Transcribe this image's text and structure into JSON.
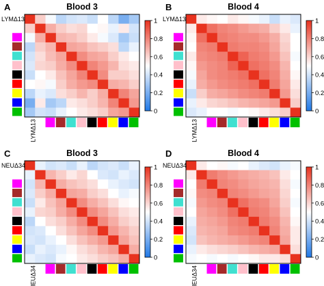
{
  "figure": {
    "colors": {
      "low": "#1f78e6",
      "mid": "#ffffff",
      "high": "#e8321e",
      "frame": "#000000"
    },
    "group_colors": [
      "#ff00ff",
      "#a52a2a",
      "#40e0d0",
      "#ffc0cb",
      "#000000",
      "#ff0000",
      "#ffff00",
      "#0000ff",
      "#00c000"
    ]
  },
  "chart_data": [
    {
      "panel": "A",
      "type": "heatmap",
      "title": "Blood 3",
      "corner_label": "LYMΔ13",
      "colorbar_ticks": [
        "0",
        "0.2",
        "0.4",
        "0.6",
        "0.8",
        "1"
      ],
      "zlim": [
        0,
        1
      ],
      "values": [
        [
          1.0,
          0.62,
          0.48,
          0.35,
          0.4,
          0.42,
          0.38,
          0.5,
          0.35,
          0.2,
          0.3
        ],
        [
          0.62,
          1.0,
          0.7,
          0.62,
          0.58,
          0.6,
          0.5,
          0.52,
          0.45,
          0.55,
          0.4
        ],
        [
          0.48,
          0.7,
          1.0,
          0.68,
          0.66,
          0.62,
          0.55,
          0.48,
          0.42,
          0.3,
          0.38
        ],
        [
          0.35,
          0.62,
          0.68,
          1.0,
          0.72,
          0.7,
          0.65,
          0.62,
          0.58,
          0.35,
          0.45
        ],
        [
          0.4,
          0.58,
          0.66,
          0.72,
          1.0,
          0.78,
          0.72,
          0.7,
          0.62,
          0.55,
          0.5
        ],
        [
          0.42,
          0.6,
          0.62,
          0.7,
          0.78,
          1.0,
          0.8,
          0.75,
          0.68,
          0.58,
          0.55
        ],
        [
          0.38,
          0.5,
          0.55,
          0.65,
          0.72,
          0.8,
          1.0,
          0.78,
          0.62,
          0.62,
          0.58
        ],
        [
          0.5,
          0.52,
          0.48,
          0.62,
          0.7,
          0.75,
          0.78,
          1.0,
          0.7,
          0.68,
          0.62
        ],
        [
          0.35,
          0.45,
          0.42,
          0.58,
          0.62,
          0.68,
          0.62,
          0.7,
          1.0,
          0.8,
          0.72
        ],
        [
          0.2,
          0.55,
          0.3,
          0.35,
          0.55,
          0.58,
          0.62,
          0.68,
          0.8,
          1.0,
          0.75
        ],
        [
          0.3,
          0.4,
          0.38,
          0.45,
          0.5,
          0.55,
          0.58,
          0.62,
          0.72,
          0.75,
          1.0
        ]
      ]
    },
    {
      "panel": "B",
      "type": "heatmap",
      "title": "Blood 4",
      "corner_label": "LYMΔ13",
      "colorbar_ticks": [
        "0",
        "0.2",
        "0.4",
        "0.6",
        "0.8",
        "1"
      ],
      "zlim": [
        0,
        1
      ],
      "values": [
        [
          1.0,
          0.55,
          0.52,
          0.5,
          0.55,
          0.52,
          0.48,
          0.45,
          0.38,
          0.45,
          0.42
        ],
        [
          0.55,
          1.0,
          0.85,
          0.8,
          0.78,
          0.75,
          0.72,
          0.7,
          0.62,
          0.55,
          0.45
        ],
        [
          0.52,
          0.85,
          1.0,
          0.82,
          0.8,
          0.78,
          0.78,
          0.75,
          0.7,
          0.6,
          0.5
        ],
        [
          0.5,
          0.8,
          0.82,
          1.0,
          0.82,
          0.8,
          0.8,
          0.78,
          0.72,
          0.62,
          0.5
        ],
        [
          0.55,
          0.78,
          0.8,
          0.82,
          1.0,
          0.88,
          0.82,
          0.8,
          0.75,
          0.65,
          0.48
        ],
        [
          0.52,
          0.75,
          0.78,
          0.8,
          0.88,
          1.0,
          0.85,
          0.82,
          0.78,
          0.68,
          0.5
        ],
        [
          0.48,
          0.72,
          0.78,
          0.8,
          0.82,
          0.85,
          1.0,
          0.85,
          0.8,
          0.7,
          0.52
        ],
        [
          0.45,
          0.7,
          0.75,
          0.78,
          0.8,
          0.82,
          0.85,
          1.0,
          0.82,
          0.72,
          0.55
        ],
        [
          0.38,
          0.62,
          0.7,
          0.72,
          0.75,
          0.78,
          0.8,
          0.82,
          1.0,
          0.75,
          0.58
        ],
        [
          0.45,
          0.55,
          0.6,
          0.62,
          0.65,
          0.68,
          0.7,
          0.72,
          0.75,
          1.0,
          0.62
        ],
        [
          0.42,
          0.45,
          0.5,
          0.5,
          0.48,
          0.5,
          0.52,
          0.55,
          0.58,
          0.62,
          1.0
        ]
      ]
    },
    {
      "panel": "C",
      "type": "heatmap",
      "title": "Blood 3",
      "corner_label": "NEUΔ34",
      "colorbar_ticks": [
        "0",
        "0.2",
        "0.4",
        "0.6",
        "0.8",
        "1"
      ],
      "zlim": [
        0,
        1
      ],
      "values": [
        [
          1.0,
          0.45,
          0.4,
          0.42,
          0.38,
          0.45,
          0.35,
          0.4,
          0.42,
          0.38,
          0.45
        ],
        [
          0.45,
          1.0,
          0.68,
          0.62,
          0.55,
          0.6,
          0.5,
          0.42,
          0.4,
          0.45,
          0.42
        ],
        [
          0.4,
          0.68,
          1.0,
          0.7,
          0.65,
          0.62,
          0.58,
          0.5,
          0.45,
          0.42,
          0.4
        ],
        [
          0.42,
          0.62,
          0.7,
          1.0,
          0.72,
          0.7,
          0.62,
          0.58,
          0.5,
          0.45,
          0.48
        ],
        [
          0.38,
          0.55,
          0.65,
          0.72,
          1.0,
          0.78,
          0.7,
          0.65,
          0.58,
          0.52,
          0.5
        ],
        [
          0.45,
          0.6,
          0.62,
          0.7,
          0.78,
          1.0,
          0.78,
          0.72,
          0.65,
          0.58,
          0.55
        ],
        [
          0.35,
          0.5,
          0.58,
          0.62,
          0.7,
          0.78,
          1.0,
          0.78,
          0.7,
          0.62,
          0.58
        ],
        [
          0.4,
          0.42,
          0.5,
          0.58,
          0.65,
          0.72,
          0.78,
          1.0,
          0.75,
          0.68,
          0.62
        ],
        [
          0.42,
          0.4,
          0.45,
          0.5,
          0.58,
          0.65,
          0.7,
          0.75,
          1.0,
          0.72,
          0.65
        ],
        [
          0.38,
          0.45,
          0.42,
          0.45,
          0.52,
          0.58,
          0.62,
          0.68,
          0.72,
          1.0,
          0.7
        ],
        [
          0.45,
          0.42,
          0.4,
          0.48,
          0.5,
          0.55,
          0.58,
          0.62,
          0.65,
          0.7,
          1.0
        ]
      ]
    },
    {
      "panel": "D",
      "type": "heatmap",
      "title": "Blood 4",
      "corner_label": "NEUΔ34",
      "colorbar_ticks": [
        "0",
        "0.2",
        "0.4",
        "0.6",
        "0.8",
        "1"
      ],
      "zlim": [
        0,
        1
      ],
      "values": [
        [
          1.0,
          0.55,
          0.5,
          0.52,
          0.48,
          0.5,
          0.45,
          0.42,
          0.4,
          0.45,
          0.48
        ],
        [
          0.55,
          1.0,
          0.82,
          0.78,
          0.75,
          0.72,
          0.7,
          0.68,
          0.65,
          0.55,
          0.5
        ],
        [
          0.5,
          0.82,
          1.0,
          0.8,
          0.78,
          0.75,
          0.72,
          0.7,
          0.68,
          0.58,
          0.48
        ],
        [
          0.52,
          0.78,
          0.8,
          1.0,
          0.8,
          0.78,
          0.75,
          0.72,
          0.7,
          0.6,
          0.5
        ],
        [
          0.48,
          0.75,
          0.78,
          0.8,
          1.0,
          0.85,
          0.8,
          0.78,
          0.72,
          0.62,
          0.48
        ],
        [
          0.5,
          0.72,
          0.75,
          0.78,
          0.85,
          1.0,
          0.82,
          0.8,
          0.75,
          0.65,
          0.5
        ],
        [
          0.45,
          0.7,
          0.72,
          0.75,
          0.8,
          0.82,
          1.0,
          0.82,
          0.78,
          0.68,
          0.52
        ],
        [
          0.42,
          0.68,
          0.7,
          0.72,
          0.78,
          0.8,
          0.82,
          1.0,
          0.8,
          0.7,
          0.55
        ],
        [
          0.4,
          0.65,
          0.68,
          0.7,
          0.72,
          0.75,
          0.78,
          0.8,
          1.0,
          0.72,
          0.55
        ],
        [
          0.45,
          0.55,
          0.58,
          0.6,
          0.62,
          0.65,
          0.68,
          0.7,
          0.72,
          1.0,
          0.58
        ],
        [
          0.48,
          0.5,
          0.48,
          0.5,
          0.48,
          0.5,
          0.52,
          0.55,
          0.55,
          0.58,
          1.0
        ]
      ]
    }
  ]
}
